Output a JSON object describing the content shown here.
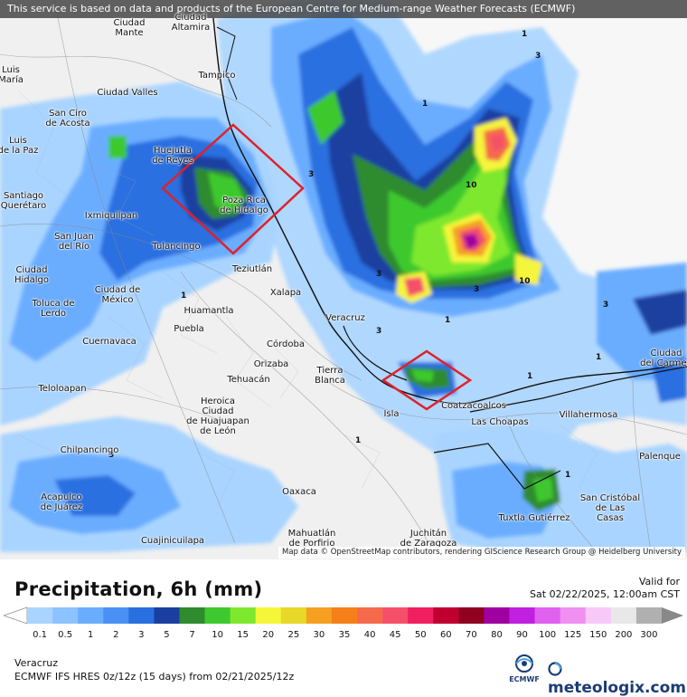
{
  "header": {
    "notice": "This service is based on data and products of the European Centre for Medium-range Weather Forecasts (ECMWF)"
  },
  "attribution": "Map data © OpenStreetMap contributors, rendering GIScience Research Group @ Heidelberg University",
  "cities": [
    {
      "name": "Ciudad\nMante"
    },
    {
      "name": "Tampico"
    },
    {
      "name": "Ciudad Valles"
    },
    {
      "name": "San Ciro\nde Acosta"
    },
    {
      "name": "Huejutla\nde Reyes"
    },
    {
      "name": "Poza Rica\nde Hidalgo"
    },
    {
      "name": "Santiago\nQuerétaro"
    },
    {
      "name": "Ixmiquilpan"
    },
    {
      "name": "San Juan\ndel Río"
    },
    {
      "name": "Tulancingo"
    },
    {
      "name": "Teziutlán"
    },
    {
      "name": "Ciudad\nHidalgo"
    },
    {
      "name": "Toluca de\nLerdo"
    },
    {
      "name": "Ciudad de\nMéxico"
    },
    {
      "name": "Xalapa"
    },
    {
      "name": "Huamantla"
    },
    {
      "name": "Veracruz"
    },
    {
      "name": "Puebla"
    },
    {
      "name": "Cuernavaca"
    },
    {
      "name": "Córdoba"
    },
    {
      "name": "Orizaba"
    },
    {
      "name": "Tierra\nBlanca"
    },
    {
      "name": "Tehuacán"
    },
    {
      "name": "Heroica\nCiudad\nde Huajuapan\nde León"
    },
    {
      "name": "Teloloapan"
    },
    {
      "name": "Isla"
    },
    {
      "name": "Coatzacoalcos"
    },
    {
      "name": "Las Choapas"
    },
    {
      "name": "Villahermosa"
    },
    {
      "name": "Ciudad\ndel Carmen"
    },
    {
      "name": "Palenque"
    },
    {
      "name": "Chilpancingo"
    },
    {
      "name": "Oaxaca"
    },
    {
      "name": "Acapulco\nde Juárez"
    },
    {
      "name": "San Cristóbal\nde Las\nCasas"
    },
    {
      "name": "Tuxtla Gutiérrez"
    },
    {
      "name": "Mahuatlán\nde Porfirio"
    },
    {
      "name": "Juchitán\nde Zaragoza"
    },
    {
      "name": "Cuajinicuilapa"
    },
    {
      "name": "Ciudad\nAltamira"
    },
    {
      "name": "Luis\nMaría"
    },
    {
      "name": "Luis\nde la Paz"
    }
  ],
  "contour_labels": [
    "1",
    "3",
    "1",
    "3",
    "10",
    "3",
    "10",
    "3",
    "1",
    "3",
    "1",
    "1",
    "1",
    "3",
    "1",
    "1",
    "3"
  ],
  "footer": {
    "title": "Precipitation, 6h (mm)",
    "valid_label": "Valid for",
    "valid_value": "Sat 02/22/2025, 12:00am CST",
    "region": "Veracruz",
    "model": "ECMWF IFS HRES 0z/12z (15 days) from  02/21/2025/12z",
    "ecmwf_label": "ECMWF",
    "brand": "meteologix.com"
  },
  "legend": {
    "ticks": [
      "0.1",
      "0.5",
      "1",
      "2",
      "3",
      "5",
      "7",
      "10",
      "15",
      "20",
      "25",
      "30",
      "35",
      "40",
      "45",
      "50",
      "60",
      "70",
      "80",
      "90",
      "100",
      "125",
      "150",
      "200",
      "300"
    ],
    "colors": [
      "#a9d4ff",
      "#8cc2ff",
      "#6aadff",
      "#4a90f5",
      "#2a6fe0",
      "#1a3fa0",
      "#2e8b2e",
      "#3ec92e",
      "#7ee82e",
      "#f5f53a",
      "#e8d82a",
      "#f5a020",
      "#f5801a",
      "#f56a4a",
      "#f5506a",
      "#f02060",
      "#c00030",
      "#900020",
      "#a000a0",
      "#c020e0",
      "#e060f0",
      "#f090f0",
      "#f8c8f8",
      "#e8e8e8",
      "#b0b0b0"
    ]
  }
}
